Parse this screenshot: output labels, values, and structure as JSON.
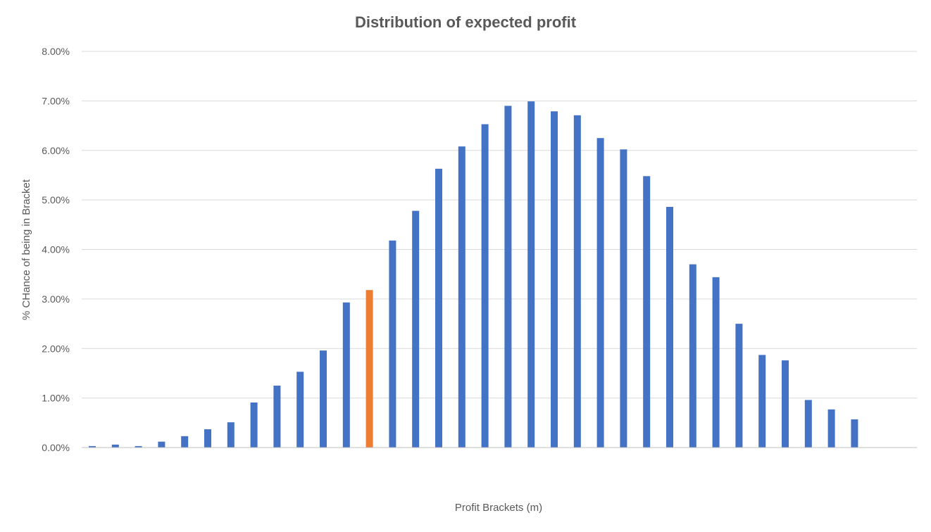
{
  "chart_data": {
    "type": "bar",
    "title": "Distribution of expected profit",
    "xlabel": "Profit Brackets (m)",
    "ylabel": "% CHance of being in Bracket",
    "ylim": [
      0,
      0.08
    ],
    "yticks": [
      0,
      0.01,
      0.02,
      0.03,
      0.04,
      0.05,
      0.06,
      0.07,
      0.08
    ],
    "ytick_labels": [
      "0.00%",
      "1.00%",
      "2.00%",
      "3.00%",
      "4.00%",
      "5.00%",
      "6.00%",
      "7.00%",
      "8.00%"
    ],
    "grid": true,
    "legend": "none",
    "values": [
      0.0003,
      0.0006,
      0.0003,
      0.0012,
      0.0023,
      0.0037,
      0.0051,
      0.0091,
      0.0125,
      0.0153,
      0.0196,
      0.0293,
      0.0318,
      0.0418,
      0.0478,
      0.0563,
      0.0608,
      0.0653,
      0.069,
      0.0699,
      0.0679,
      0.0671,
      0.0625,
      0.0602,
      0.0548,
      0.0486,
      0.037,
      0.0344,
      0.025,
      0.0187,
      0.0176,
      0.0096,
      0.0077,
      0.0057
    ],
    "highlight_index": 12,
    "colors": {
      "bar": "#4472c4",
      "highlight": "#ed7d31"
    }
  }
}
